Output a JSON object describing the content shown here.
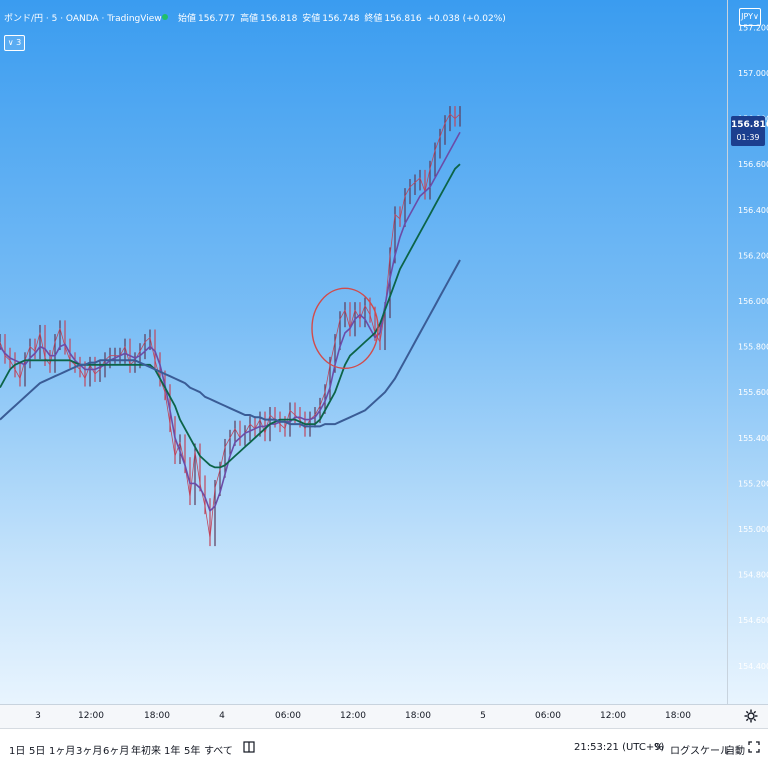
{
  "header": {
    "symbol_title": "ポンド/円 · 5 · OANDA · TradingView",
    "ohlc": {
      "open_label": "始値",
      "open": "156.777",
      "high_label": "高値",
      "high": "156.818",
      "low_label": "安値",
      "low": "156.748",
      "close_label": "終値",
      "close": "156.816",
      "change": "+0.038 (+0.02%)"
    },
    "indicator_toggle": "∨ 3",
    "currency_badge": "JPY∨",
    "live_dot_color": "#1fbf6a"
  },
  "last_price_tag": {
    "price": "156.816",
    "countdown": "01:39"
  },
  "bottom_bar": {
    "ranges": [
      "1日",
      "5日",
      "1ヶ月",
      "3ヶ月",
      "6ヶ月",
      "年初来",
      "1年",
      "5年",
      "すべて"
    ],
    "datetime": "21:53:21 (UTC+9)",
    "percent": "%",
    "log_scale": "ログスケール",
    "auto": "自動",
    "icons": [
      "compare-range-icon",
      "fullscreen-icon",
      "settings-icon"
    ]
  },
  "colors": {
    "candle_up": "#5a3a5a",
    "candle_down": "#c0455c",
    "ma_short": "#6b4ca8",
    "ma_mid": "#0c6448",
    "ma_long": "#3a5c96",
    "annotation": "#d24a4a",
    "axis_text": "#ffffff",
    "time_text": "#131722"
  },
  "chart_data": {
    "type": "line",
    "title": "ポンド/円 · 5 · OANDA · TradingView",
    "x_ticks": [
      "3",
      "12:00",
      "18:00",
      "4",
      "06:00",
      "12:00",
      "18:00",
      "5",
      "06:00",
      "12:00",
      "18:00"
    ],
    "y_ticks": [
      "157.200",
      "157.000",
      "156.800",
      "156.600",
      "156.400",
      "156.200",
      "156.000",
      "155.800",
      "155.600",
      "155.400",
      "155.200",
      "155.000",
      "154.800",
      "154.600",
      "154.400"
    ],
    "ylim": [
      154.25,
      157.25
    ],
    "y_scale": "linear",
    "grid": false,
    "x": [
      0,
      5,
      10,
      15,
      20,
      25,
      30,
      35,
      40,
      45,
      50,
      55,
      60,
      65,
      70,
      75,
      80,
      85,
      90,
      95,
      100,
      105,
      110,
      115,
      120,
      125,
      130,
      135,
      140,
      145,
      150,
      155,
      160,
      165,
      170,
      175,
      180,
      185,
      190,
      195,
      200,
      205,
      210,
      215,
      220,
      225,
      230,
      235,
      240,
      245,
      250,
      255,
      260,
      265,
      270,
      275,
      280,
      285,
      290,
      295,
      300,
      305,
      310,
      315,
      320,
      325,
      330,
      335,
      340,
      345,
      350,
      355,
      360,
      365,
      370,
      375,
      380,
      385,
      390,
      395,
      400,
      405,
      410,
      415,
      420,
      425,
      430,
      435,
      440,
      445,
      450,
      455,
      460
    ],
    "x_unit": "hours since start, 5-minute bars shown aggregated",
    "series": [
      {
        "name": "price",
        "values": [
          155.82,
          155.76,
          155.74,
          155.7,
          155.66,
          155.74,
          155.8,
          155.78,
          155.86,
          155.75,
          155.72,
          155.82,
          155.88,
          155.8,
          155.74,
          155.72,
          155.7,
          155.66,
          155.72,
          155.68,
          155.7,
          155.74,
          155.76,
          155.76,
          155.76,
          155.8,
          155.72,
          155.74,
          155.78,
          155.82,
          155.84,
          155.74,
          155.66,
          155.6,
          155.46,
          155.32,
          155.38,
          155.28,
          155.14,
          155.34,
          155.2,
          155.1,
          154.96,
          155.18,
          155.26,
          155.36,
          155.4,
          155.44,
          155.4,
          155.42,
          155.46,
          155.44,
          155.48,
          155.42,
          155.5,
          155.48,
          155.46,
          155.44,
          155.52,
          155.5,
          155.48,
          155.44,
          155.48,
          155.5,
          155.54,
          155.6,
          155.72,
          155.82,
          155.92,
          155.96,
          155.88,
          155.96,
          155.92,
          155.98,
          155.94,
          155.86,
          155.82,
          155.96,
          156.2,
          156.38,
          156.36,
          156.46,
          156.5,
          156.52,
          156.54,
          156.48,
          156.58,
          156.66,
          156.72,
          156.78,
          156.82,
          156.8,
          156.82
        ]
      },
      {
        "name": "ma-short",
        "values": [
          155.8,
          155.77,
          155.75,
          155.74,
          155.73,
          155.72,
          155.75,
          155.77,
          155.8,
          155.79,
          155.76,
          155.76,
          155.8,
          155.81,
          155.77,
          155.74,
          155.72,
          155.7,
          155.7,
          155.7,
          155.71,
          155.72,
          155.74,
          155.75,
          155.76,
          155.77,
          155.76,
          155.75,
          155.76,
          155.78,
          155.8,
          155.78,
          155.72,
          155.63,
          155.52,
          155.4,
          155.34,
          155.28,
          155.2,
          155.2,
          155.18,
          155.14,
          155.08,
          155.1,
          155.16,
          155.24,
          155.32,
          155.38,
          155.4,
          155.42,
          155.43,
          155.44,
          155.45,
          155.45,
          155.46,
          155.46,
          155.47,
          155.47,
          155.47,
          155.49,
          155.49,
          155.48,
          155.48,
          155.49,
          155.52,
          155.56,
          155.62,
          155.72,
          155.8,
          155.86,
          155.88,
          155.92,
          155.94,
          155.92,
          155.88,
          155.84,
          155.86,
          155.98,
          156.1,
          156.2,
          156.28,
          156.34,
          156.38,
          156.42,
          156.46,
          156.48,
          156.5,
          156.54,
          156.58,
          156.62,
          156.66,
          156.7,
          156.74
        ]
      },
      {
        "name": "ma-mid",
        "values": [
          155.62,
          155.66,
          155.7,
          155.72,
          155.73,
          155.74,
          155.74,
          155.74,
          155.74,
          155.74,
          155.74,
          155.74,
          155.74,
          155.74,
          155.74,
          155.73,
          155.72,
          155.72,
          155.72,
          155.72,
          155.72,
          155.72,
          155.72,
          155.72,
          155.72,
          155.72,
          155.72,
          155.72,
          155.72,
          155.72,
          155.72,
          155.7,
          155.66,
          155.62,
          155.58,
          155.54,
          155.48,
          155.44,
          155.4,
          155.36,
          155.32,
          155.3,
          155.28,
          155.27,
          155.27,
          155.28,
          155.3,
          155.32,
          155.34,
          155.36,
          155.38,
          155.4,
          155.42,
          155.44,
          155.46,
          155.47,
          155.48,
          155.48,
          155.48,
          155.48,
          155.47,
          155.46,
          155.46,
          155.46,
          155.48,
          155.52,
          155.56,
          155.6,
          155.66,
          155.72,
          155.76,
          155.78,
          155.8,
          155.82,
          155.84,
          155.86,
          155.9,
          155.96,
          156.02,
          156.08,
          156.14,
          156.18,
          156.22,
          156.26,
          156.3,
          156.34,
          156.38,
          156.42,
          156.46,
          156.5,
          156.54,
          156.58,
          156.6
        ]
      },
      {
        "name": "ma-long",
        "values": [
          155.48,
          155.5,
          155.52,
          155.54,
          155.56,
          155.58,
          155.6,
          155.62,
          155.64,
          155.65,
          155.66,
          155.67,
          155.68,
          155.69,
          155.7,
          155.71,
          155.72,
          155.72,
          155.73,
          155.73,
          155.74,
          155.74,
          155.74,
          155.74,
          155.74,
          155.74,
          155.74,
          155.74,
          155.73,
          155.72,
          155.71,
          155.7,
          155.69,
          155.68,
          155.67,
          155.66,
          155.65,
          155.64,
          155.62,
          155.61,
          155.6,
          155.58,
          155.57,
          155.56,
          155.55,
          155.54,
          155.53,
          155.52,
          155.51,
          155.5,
          155.5,
          155.49,
          155.49,
          155.48,
          155.48,
          155.48,
          155.47,
          155.47,
          155.46,
          155.46,
          155.46,
          155.45,
          155.45,
          155.45,
          155.45,
          155.46,
          155.46,
          155.46,
          155.47,
          155.48,
          155.49,
          155.5,
          155.51,
          155.52,
          155.54,
          155.56,
          155.58,
          155.6,
          155.63,
          155.66,
          155.7,
          155.74,
          155.78,
          155.82,
          155.86,
          155.9,
          155.94,
          155.98,
          156.02,
          156.06,
          156.1,
          156.14,
          156.18
        ]
      }
    ]
  }
}
